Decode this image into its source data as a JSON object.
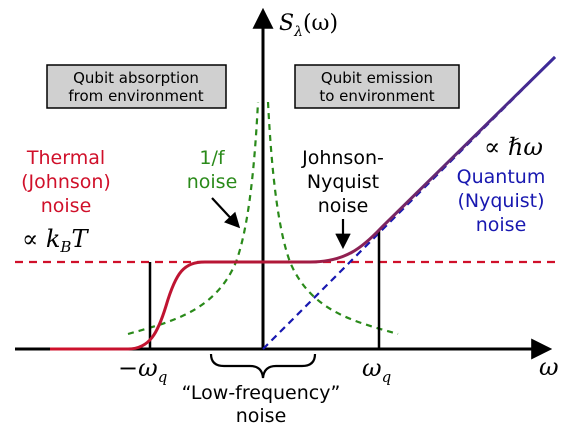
{
  "axes": {
    "y_label_main": "S",
    "y_label_sub": "λ",
    "y_label_arg": "(ω)",
    "x_label": "ω"
  },
  "ticks": {
    "neg_omega_q_sign": "−",
    "neg_omega_q": "ω",
    "neg_omega_q_sub": "q",
    "pos_omega_q": "ω",
    "pos_omega_q_sub": "q"
  },
  "boxes": {
    "absorption": [
      "Qubit absorption",
      "from environment"
    ],
    "emission": [
      "Qubit emission",
      "to environment"
    ]
  },
  "labels": {
    "thermal": [
      "Thermal",
      "(Johnson)",
      "noise"
    ],
    "one_over_f": [
      "1/f",
      "noise"
    ],
    "johnson_nyquist": [
      "Johnson-",
      "Nyquist",
      "noise"
    ],
    "quantum": [
      "Quantum",
      "(Nyquist)",
      "noise"
    ],
    "low_freq": [
      "“Low-frequency”",
      "noise"
    ],
    "kbt_prefix": "∝ ",
    "kbt_k": "k",
    "kbt_sub": "B",
    "kbt_T": "T",
    "hbar_prefix": "∝ ",
    "hbar": "ℏω"
  },
  "colors": {
    "thermal": "#d0102a",
    "one_over_f": "#2a8a1a",
    "quantum": "#1818b0",
    "total_curve": "#8a2050",
    "box_fill": "#d0d0d0"
  }
}
